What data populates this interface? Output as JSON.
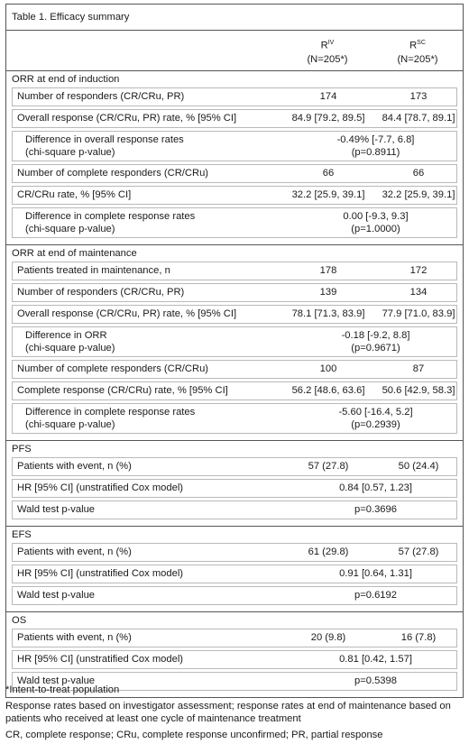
{
  "table": {
    "title": "Table 1. Efficacy summary",
    "col1_name": "R",
    "col1_sup": "IV",
    "col1_n": "(N=205*)",
    "col2_name": "R",
    "col2_sup": "SC",
    "col2_n": "(N=205*)"
  },
  "induction": {
    "title": "ORR at end of induction",
    "r1": {
      "label": "Number of responders (CR/CRu, PR)",
      "v1": "174",
      "v2": "173"
    },
    "r2": {
      "label": "Overall response (CR/CRu, PR) rate, % [95% CI]",
      "v1": "84.9 [79.2, 89.5]",
      "v2": "84.4 [78.7, 89.1]"
    },
    "r3": {
      "label": "Difference in overall response rates\n(chi-square p-value)",
      "value": "-0.49% [-7.7, 6.8]\n(p=0.8911)"
    },
    "r4": {
      "label": "Number of complete responders (CR/CRu)",
      "v1": "66",
      "v2": "66"
    },
    "r5": {
      "label": "CR/CRu rate, % [95% CI]",
      "v1": "32.2 [25.9, 39.1]",
      "v2": "32.2 [25.9, 39.1]"
    },
    "r6": {
      "label": "Difference in complete response rates\n(chi-square p-value)",
      "value": "0.00 [-9.3, 9.3]\n(p=1.0000)"
    }
  },
  "maintenance": {
    "title": "ORR at end of maintenance",
    "r1": {
      "label": "Patients treated in maintenance, n",
      "v1": "178",
      "v2": "172"
    },
    "r2": {
      "label": "Number of responders (CR/CRu, PR)",
      "v1": "139",
      "v2": "134"
    },
    "r3": {
      "label": "Overall response (CR/CRu, PR) rate, % [95% CI]",
      "v1": "78.1 [71.3, 83.9]",
      "v2": "77.9 [71.0, 83.9]"
    },
    "r4": {
      "label": "Difference in ORR\n(chi-square p-value)",
      "value": "-0.18 [-9.2, 8.8]\n(p=0.9671)"
    },
    "r5": {
      "label": "Number of complete responders (CR/CRu)",
      "v1": "100",
      "v2": "87"
    },
    "r6": {
      "label": "Complete response (CR/CRu) rate, % [95% CI]",
      "v1": "56.2 [48.6, 63.6]",
      "v2": "50.6 [42.9, 58.3]"
    },
    "r7": {
      "label": "Difference in complete response rates\n(chi-square p-value)",
      "value": "-5.60 [-16.4, 5.2]\n(p=0.2939)"
    }
  },
  "pfs": {
    "title": "PFS",
    "r1": {
      "label": "Patients with event, n (%)",
      "v1": "57 (27.8)",
      "v2": "50 (24.4)"
    },
    "r2": {
      "label": "HR [95% CI] (unstratified Cox model)",
      "value": "0.84 [0.57, 1.23]"
    },
    "r3": {
      "label": "Wald test p-value",
      "value": "p=0.3696"
    }
  },
  "efs": {
    "title": "EFS",
    "r1": {
      "label": "Patients with event, n (%)",
      "v1": "61 (29.8)",
      "v2": "57 (27.8)"
    },
    "r2": {
      "label": "HR [95% CI] (unstratified Cox model)",
      "value": "0.91 [0.64, 1.31]"
    },
    "r3": {
      "label": "Wald test p-value",
      "value": "p=0.6192"
    }
  },
  "os": {
    "title": "OS",
    "r1": {
      "label": "Patients with event, n (%)",
      "v1": "20 (9.8)",
      "v2": "16 (7.8)"
    },
    "r2": {
      "label": "HR [95% CI] (unstratified Cox model)",
      "value": "0.81 [0.42, 1.57]"
    },
    "r3": {
      "label": "Wald test p-value",
      "value": "p=0.5398"
    }
  },
  "footer": {
    "note1": "*Intent-to-treat population",
    "note2": "Response rates based on investigator assessment; response rates at end of maintenance based on patients who received at least one cycle of maintenance treatment",
    "note3": "CR, complete response; CRu, complete response unconfirmed; PR, partial response"
  }
}
